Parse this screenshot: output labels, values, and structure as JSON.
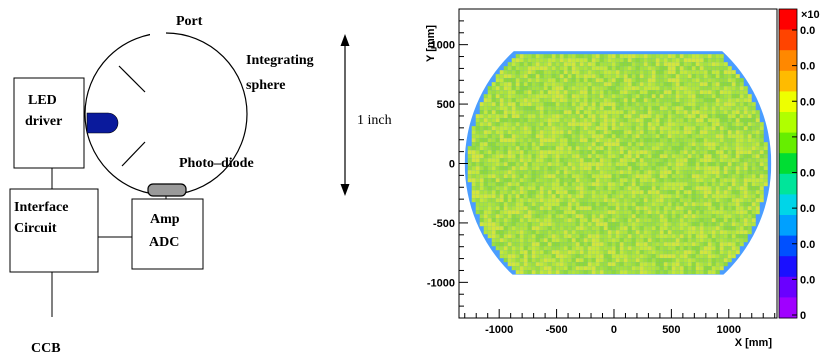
{
  "schematic": {
    "port_label": "Port",
    "sphere_label_line1": "Integrating",
    "sphere_label_line2": "sphere",
    "led_driver_line1": "LED",
    "led_driver_line2": "driver",
    "photodiode_label": "Photo–diode",
    "interface_line1": "Interface",
    "interface_line2": "Circuit",
    "amp_adc_line1": "Amp",
    "amp_adc_line2": "ADC",
    "ccb_label": "CCB",
    "scale_label": "1 inch"
  },
  "chart_data": {
    "type": "heatmap",
    "xlabel": "X [mm]",
    "ylabel": "Y [mm]",
    "x_ticks": [
      "-1000",
      "-500",
      "0",
      "500",
      "1000"
    ],
    "x_tick_values": [
      -1000,
      -500,
      0,
      500,
      1000
    ],
    "y_ticks": [
      "-1000",
      "-500",
      "0",
      "500",
      "1000"
    ],
    "y_tick_values": [
      -1000,
      -500,
      0,
      500,
      1000
    ],
    "xlim": [
      -1350,
      1420
    ],
    "ylim": [
      -1300,
      1300
    ],
    "colorbar_exponent": "×10",
    "colorbar_labels": [
      "0.0",
      "0.0",
      "0.0",
      "0.0",
      "0.0",
      "0.0",
      "0.0",
      "0.0",
      "0"
    ],
    "colorbar_colors": [
      "#ff0000",
      "#ff4400",
      "#ff8800",
      "#ffbb00",
      "#eeff00",
      "#b0ff00",
      "#66ee00",
      "#00dd33",
      "#00e59a",
      "#00d5e8",
      "#00a0ff",
      "#0050ff",
      "#1a10ff",
      "#6a00ff",
      "#a000ff"
    ],
    "fill_colors": [
      "#9ddd3f",
      "#a8e23d",
      "#b4e43b",
      "#c5e83a",
      "#8fd83c",
      "#d4e63c"
    ],
    "edge_color": "#4a9dff",
    "region": {
      "x_min": -1300,
      "x_max": 1370,
      "y_min": -935,
      "y_max": 945,
      "circle_center_x": 35,
      "circle_center_y": 0,
      "circle_radius": 1335
    }
  }
}
